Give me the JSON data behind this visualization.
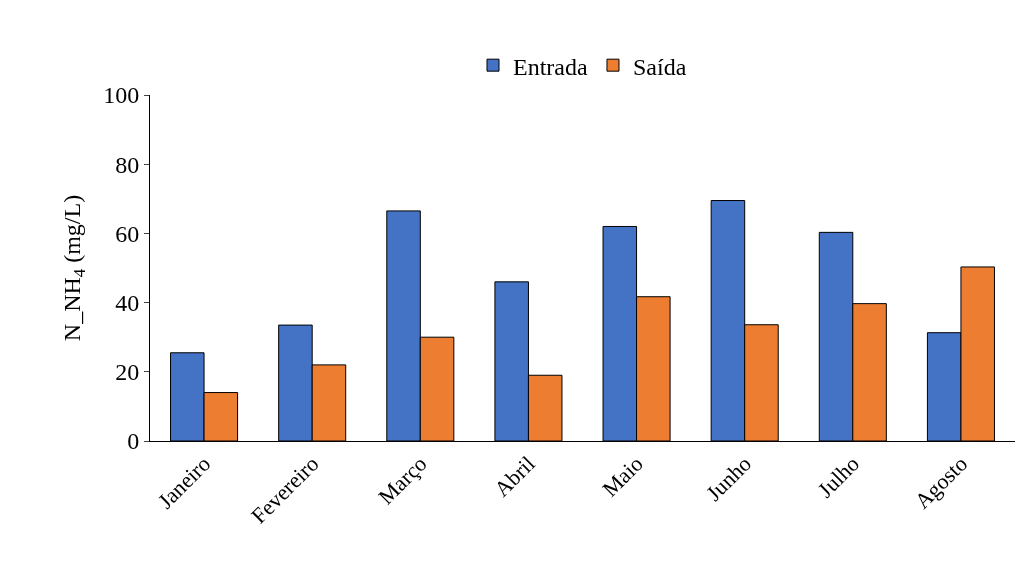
{
  "chart_data": {
    "type": "bar",
    "ylabel": "N_NH$_{4}$ (mg/L)",
    "categories": [
      "Janeiro",
      "Fevereiro",
      "Março",
      "Abril",
      "Maio",
      "Junho",
      "Julho",
      "Agosto"
    ],
    "series": [
      {
        "name": "Entrada",
        "color": "#4472c4",
        "values": [
          25.5,
          33.5,
          66.5,
          46,
          62,
          69.5,
          60.3,
          31.3
        ]
      },
      {
        "name": "Saída",
        "color": "#ed7d31",
        "values": [
          14,
          22,
          30,
          19,
          41.7,
          33.6,
          39.7,
          50.3
        ]
      }
    ],
    "ylim": [
      0,
      100
    ],
    "yticks": [
      0,
      20,
      40,
      60,
      80,
      100
    ],
    "grid": false,
    "legend": "top"
  }
}
